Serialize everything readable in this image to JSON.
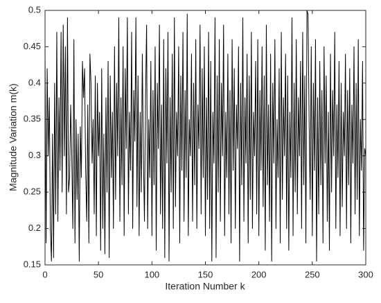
{
  "chart_data": {
    "type": "line",
    "xlabel": "Iteration Number k",
    "ylabel": "Magnitude Variation m(k)",
    "x": [
      0,
      1,
      2,
      3,
      4,
      5,
      6,
      7,
      8,
      9,
      10,
      11,
      12,
      13,
      14,
      15,
      16,
      17,
      18,
      19,
      20,
      21,
      22,
      23,
      24,
      25,
      26,
      27,
      28,
      29,
      30,
      31,
      32,
      33,
      34,
      35,
      36,
      37,
      38,
      39,
      40,
      41,
      42,
      43,
      44,
      45,
      46,
      47,
      48,
      49,
      50,
      51,
      52,
      53,
      54,
      55,
      56,
      57,
      58,
      59,
      60,
      61,
      62,
      63,
      64,
      65,
      66,
      67,
      68,
      69,
      70,
      71,
      72,
      73,
      74,
      75,
      76,
      77,
      78,
      79,
      80,
      81,
      82,
      83,
      84,
      85,
      86,
      87,
      88,
      89,
      90,
      91,
      92,
      93,
      94,
      95,
      96,
      97,
      98,
      99,
      100,
      101,
      102,
      103,
      104,
      105,
      106,
      107,
      108,
      109,
      110,
      111,
      112,
      113,
      114,
      115,
      116,
      117,
      118,
      119,
      120,
      121,
      122,
      123,
      124,
      125,
      126,
      127,
      128,
      129,
      130,
      131,
      132,
      133,
      134,
      135,
      136,
      137,
      138,
      139,
      140,
      141,
      142,
      143,
      144,
      145,
      146,
      147,
      148,
      149,
      150,
      151,
      152,
      153,
      154,
      155,
      156,
      157,
      158,
      159,
      160,
      161,
      162,
      163,
      164,
      165,
      166,
      167,
      168,
      169,
      170,
      171,
      172,
      173,
      174,
      175,
      176,
      177,
      178,
      179,
      180,
      181,
      182,
      183,
      184,
      185,
      186,
      187,
      188,
      189,
      190,
      191,
      192,
      193,
      194,
      195,
      196,
      197,
      198,
      199,
      200,
      201,
      202,
      203,
      204,
      205,
      206,
      207,
      208,
      209,
      210,
      211,
      212,
      213,
      214,
      215,
      216,
      217,
      218,
      219,
      220,
      221,
      222,
      223,
      224,
      225,
      226,
      227,
      228,
      229,
      230,
      231,
      232,
      233,
      234,
      235,
      236,
      237,
      238,
      239,
      240,
      241,
      242,
      243,
      244,
      245,
      246,
      247,
      248,
      249,
      250,
      251,
      252,
      253,
      254,
      255,
      256,
      257,
      258,
      259,
      260,
      261,
      262,
      263,
      264,
      265,
      266,
      267,
      268,
      269,
      270,
      271,
      272,
      273,
      274,
      275,
      276,
      277,
      278,
      279,
      280,
      281,
      282,
      283,
      284,
      285,
      286,
      287,
      288,
      289,
      290,
      291,
      292,
      293,
      294,
      295,
      296,
      297,
      298,
      299,
      300
    ],
    "series": [
      {
        "color": "#000000",
        "values": [
          0.45,
          0.18,
          0.42,
          0.3,
          0.38,
          0.2,
          0.155,
          0.33,
          0.16,
          0.4,
          0.22,
          0.47,
          0.21,
          0.38,
          0.28,
          0.47,
          0.25,
          0.48,
          0.3,
          0.45,
          0.22,
          0.49,
          0.25,
          0.27,
          0.37,
          0.3,
          0.2,
          0.46,
          0.18,
          0.35,
          0.24,
          0.33,
          0.155,
          0.34,
          0.27,
          0.43,
          0.38,
          0.42,
          0.28,
          0.21,
          0.37,
          0.18,
          0.44,
          0.4,
          0.29,
          0.35,
          0.22,
          0.41,
          0.19,
          0.4,
          0.3,
          0.36,
          0.17,
          0.42,
          0.2,
          0.33,
          0.165,
          0.38,
          0.25,
          0.43,
          0.16,
          0.41,
          0.27,
          0.36,
          0.2,
          0.45,
          0.24,
          0.4,
          0.3,
          0.49,
          0.21,
          0.38,
          0.26,
          0.45,
          0.19,
          0.42,
          0.31,
          0.49,
          0.22,
          0.36,
          0.28,
          0.47,
          0.2,
          0.39,
          0.32,
          0.49,
          0.23,
          0.41,
          0.19,
          0.36,
          0.25,
          0.44,
          0.3,
          0.21,
          0.38,
          0.48,
          0.2,
          0.35,
          0.27,
          0.43,
          0.19,
          0.39,
          0.26,
          0.45,
          0.17,
          0.4,
          0.31,
          0.48,
          0.22,
          0.37,
          0.2,
          0.46,
          0.16,
          0.42,
          0.29,
          0.47,
          0.155,
          0.38,
          0.25,
          0.44,
          0.2,
          0.49,
          0.23,
          0.36,
          0.3,
          0.45,
          0.18,
          0.41,
          0.28,
          0.47,
          0.21,
          0.39,
          0.27,
          0.495,
          0.19,
          0.35,
          0.3,
          0.44,
          0.21,
          0.4,
          0.26,
          0.46,
          0.2,
          0.37,
          0.31,
          0.48,
          0.22,
          0.42,
          0.27,
          0.45,
          0.19,
          0.38,
          0.24,
          0.47,
          0.2,
          0.43,
          0.155,
          0.36,
          0.29,
          0.49,
          0.16,
          0.41,
          0.25,
          0.46,
          0.21,
          0.4,
          0.3,
          0.48,
          0.19,
          0.36,
          0.27,
          0.44,
          0.22,
          0.39,
          0.18,
          0.46,
          0.28,
          0.42,
          0.2,
          0.37,
          0.31,
          0.45,
          0.155,
          0.4,
          0.26,
          0.49,
          0.21,
          0.38,
          0.29,
          0.44,
          0.18,
          0.41,
          0.24,
          0.47,
          0.2,
          0.36,
          0.3,
          0.43,
          0.22,
          0.46,
          0.19,
          0.39,
          0.28,
          0.45,
          0.23,
          0.41,
          0.17,
          0.48,
          0.26,
          0.37,
          0.21,
          0.44,
          0.155,
          0.4,
          0.29,
          0.46,
          0.2,
          0.35,
          0.27,
          0.42,
          0.18,
          0.47,
          0.24,
          0.38,
          0.3,
          0.44,
          0.2,
          0.41,
          0.17,
          0.36,
          0.27,
          0.49,
          0.19,
          0.4,
          0.25,
          0.46,
          0.22,
          0.38,
          0.3,
          0.43,
          0.2,
          0.47,
          0.26,
          0.41,
          0.18,
          0.5,
          0.495,
          0.35,
          0.24,
          0.45,
          0.19,
          0.4,
          0.28,
          0.46,
          0.155,
          0.38,
          0.22,
          0.43,
          0.26,
          0.39,
          0.18,
          0.45,
          0.29,
          0.41,
          0.21,
          0.36,
          0.17,
          0.44,
          0.25,
          0.39,
          0.3,
          0.47,
          0.2,
          0.37,
          0.27,
          0.43,
          0.19,
          0.4,
          0.23,
          0.36,
          0.3,
          0.44,
          0.2,
          0.39,
          0.26,
          0.42,
          0.18,
          0.37,
          0.29,
          0.45,
          0.22,
          0.4,
          0.24,
          0.46,
          0.19,
          0.35,
          0.28,
          0.43,
          0.17,
          0.31,
          0.3
        ]
      }
    ],
    "xlim": [
      0,
      300
    ],
    "xticks": [
      0,
      50,
      100,
      150,
      200,
      250,
      300
    ],
    "ylim": [
      0.15,
      0.5
    ],
    "yticks": [
      0.15,
      0.2,
      0.25,
      0.3,
      0.35,
      0.4,
      0.45,
      0.5
    ]
  }
}
